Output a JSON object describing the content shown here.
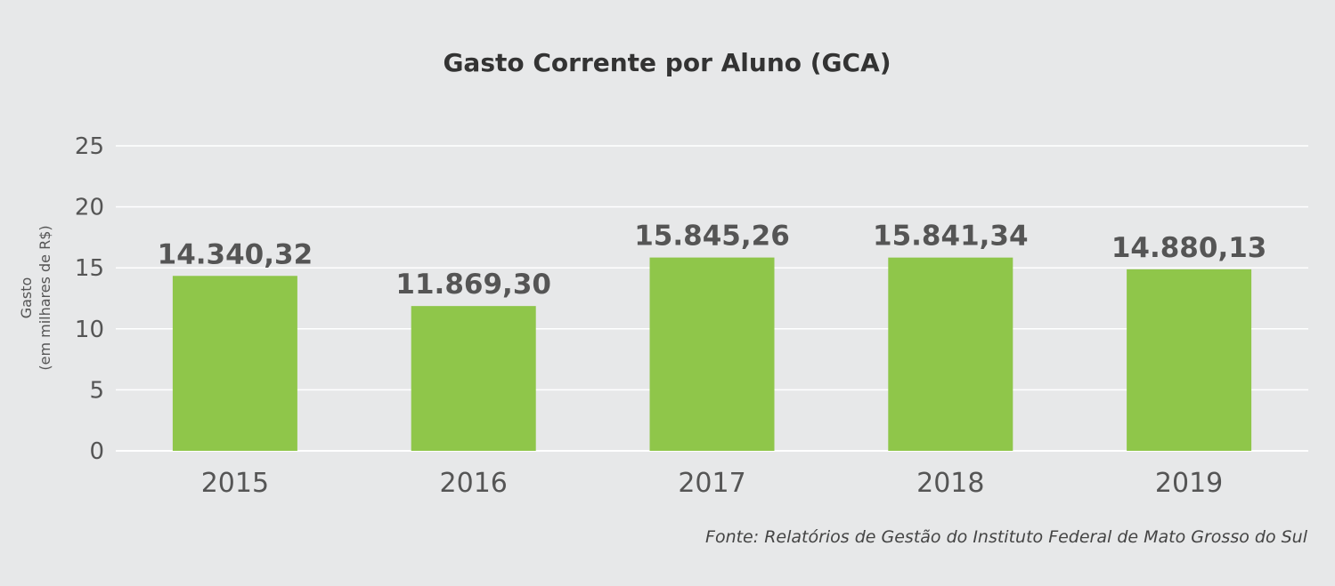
{
  "chart_data": {
    "type": "bar",
    "title": "Gasto Corrente por Aluno (GCA)",
    "ylabel_line1": "Gasto",
    "ylabel_line2": "(em milhares de R$)",
    "xlabel": "",
    "categories": [
      "2015",
      "2016",
      "2017",
      "2018",
      "2019"
    ],
    "values": [
      14.34032,
      11.8693,
      15.84526,
      15.84134,
      14.88013
    ],
    "data_labels": [
      "14.340,32",
      "11.869,30",
      "15.845,26",
      "15.841,34",
      "14.880,13"
    ],
    "ylim": [
      0,
      25
    ],
    "yticks": [
      "0",
      "5",
      "10",
      "15",
      "20",
      "25"
    ],
    "grid": true,
    "bar_color": "#8fc64a",
    "grid_color": "#ffffff",
    "background_color": "#e7e8e9"
  },
  "source_note": "Fonte: Relatórios de Gestão do Instituto Federal de Mato Grosso do Sul"
}
